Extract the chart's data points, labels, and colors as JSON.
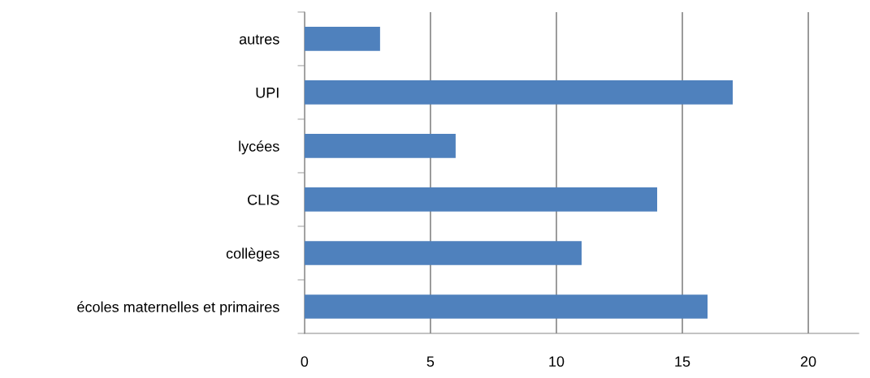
{
  "chart_data": {
    "type": "bar",
    "orientation": "horizontal",
    "categories": [
      "autres",
      "UPI",
      "lycées",
      "CLIS",
      "collèges",
      "écoles maternelles et primaires"
    ],
    "values": [
      3,
      17,
      6,
      14,
      11,
      16
    ],
    "color": "#4f81bd",
    "xlim": [
      0,
      22
    ],
    "xticks": [
      0,
      5,
      10,
      15,
      20
    ],
    "grid": "x",
    "legend": false
  }
}
